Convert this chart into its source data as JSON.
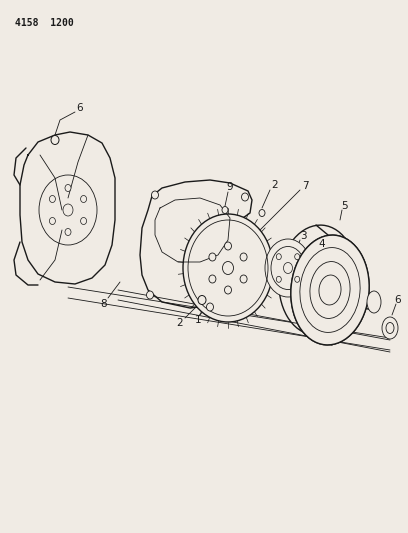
{
  "background_color": "#f0ebe4",
  "line_color": "#1a1a1a",
  "header_text": "4158  1200",
  "header_fontsize": 7,
  "label_fontsize": 7.5
}
